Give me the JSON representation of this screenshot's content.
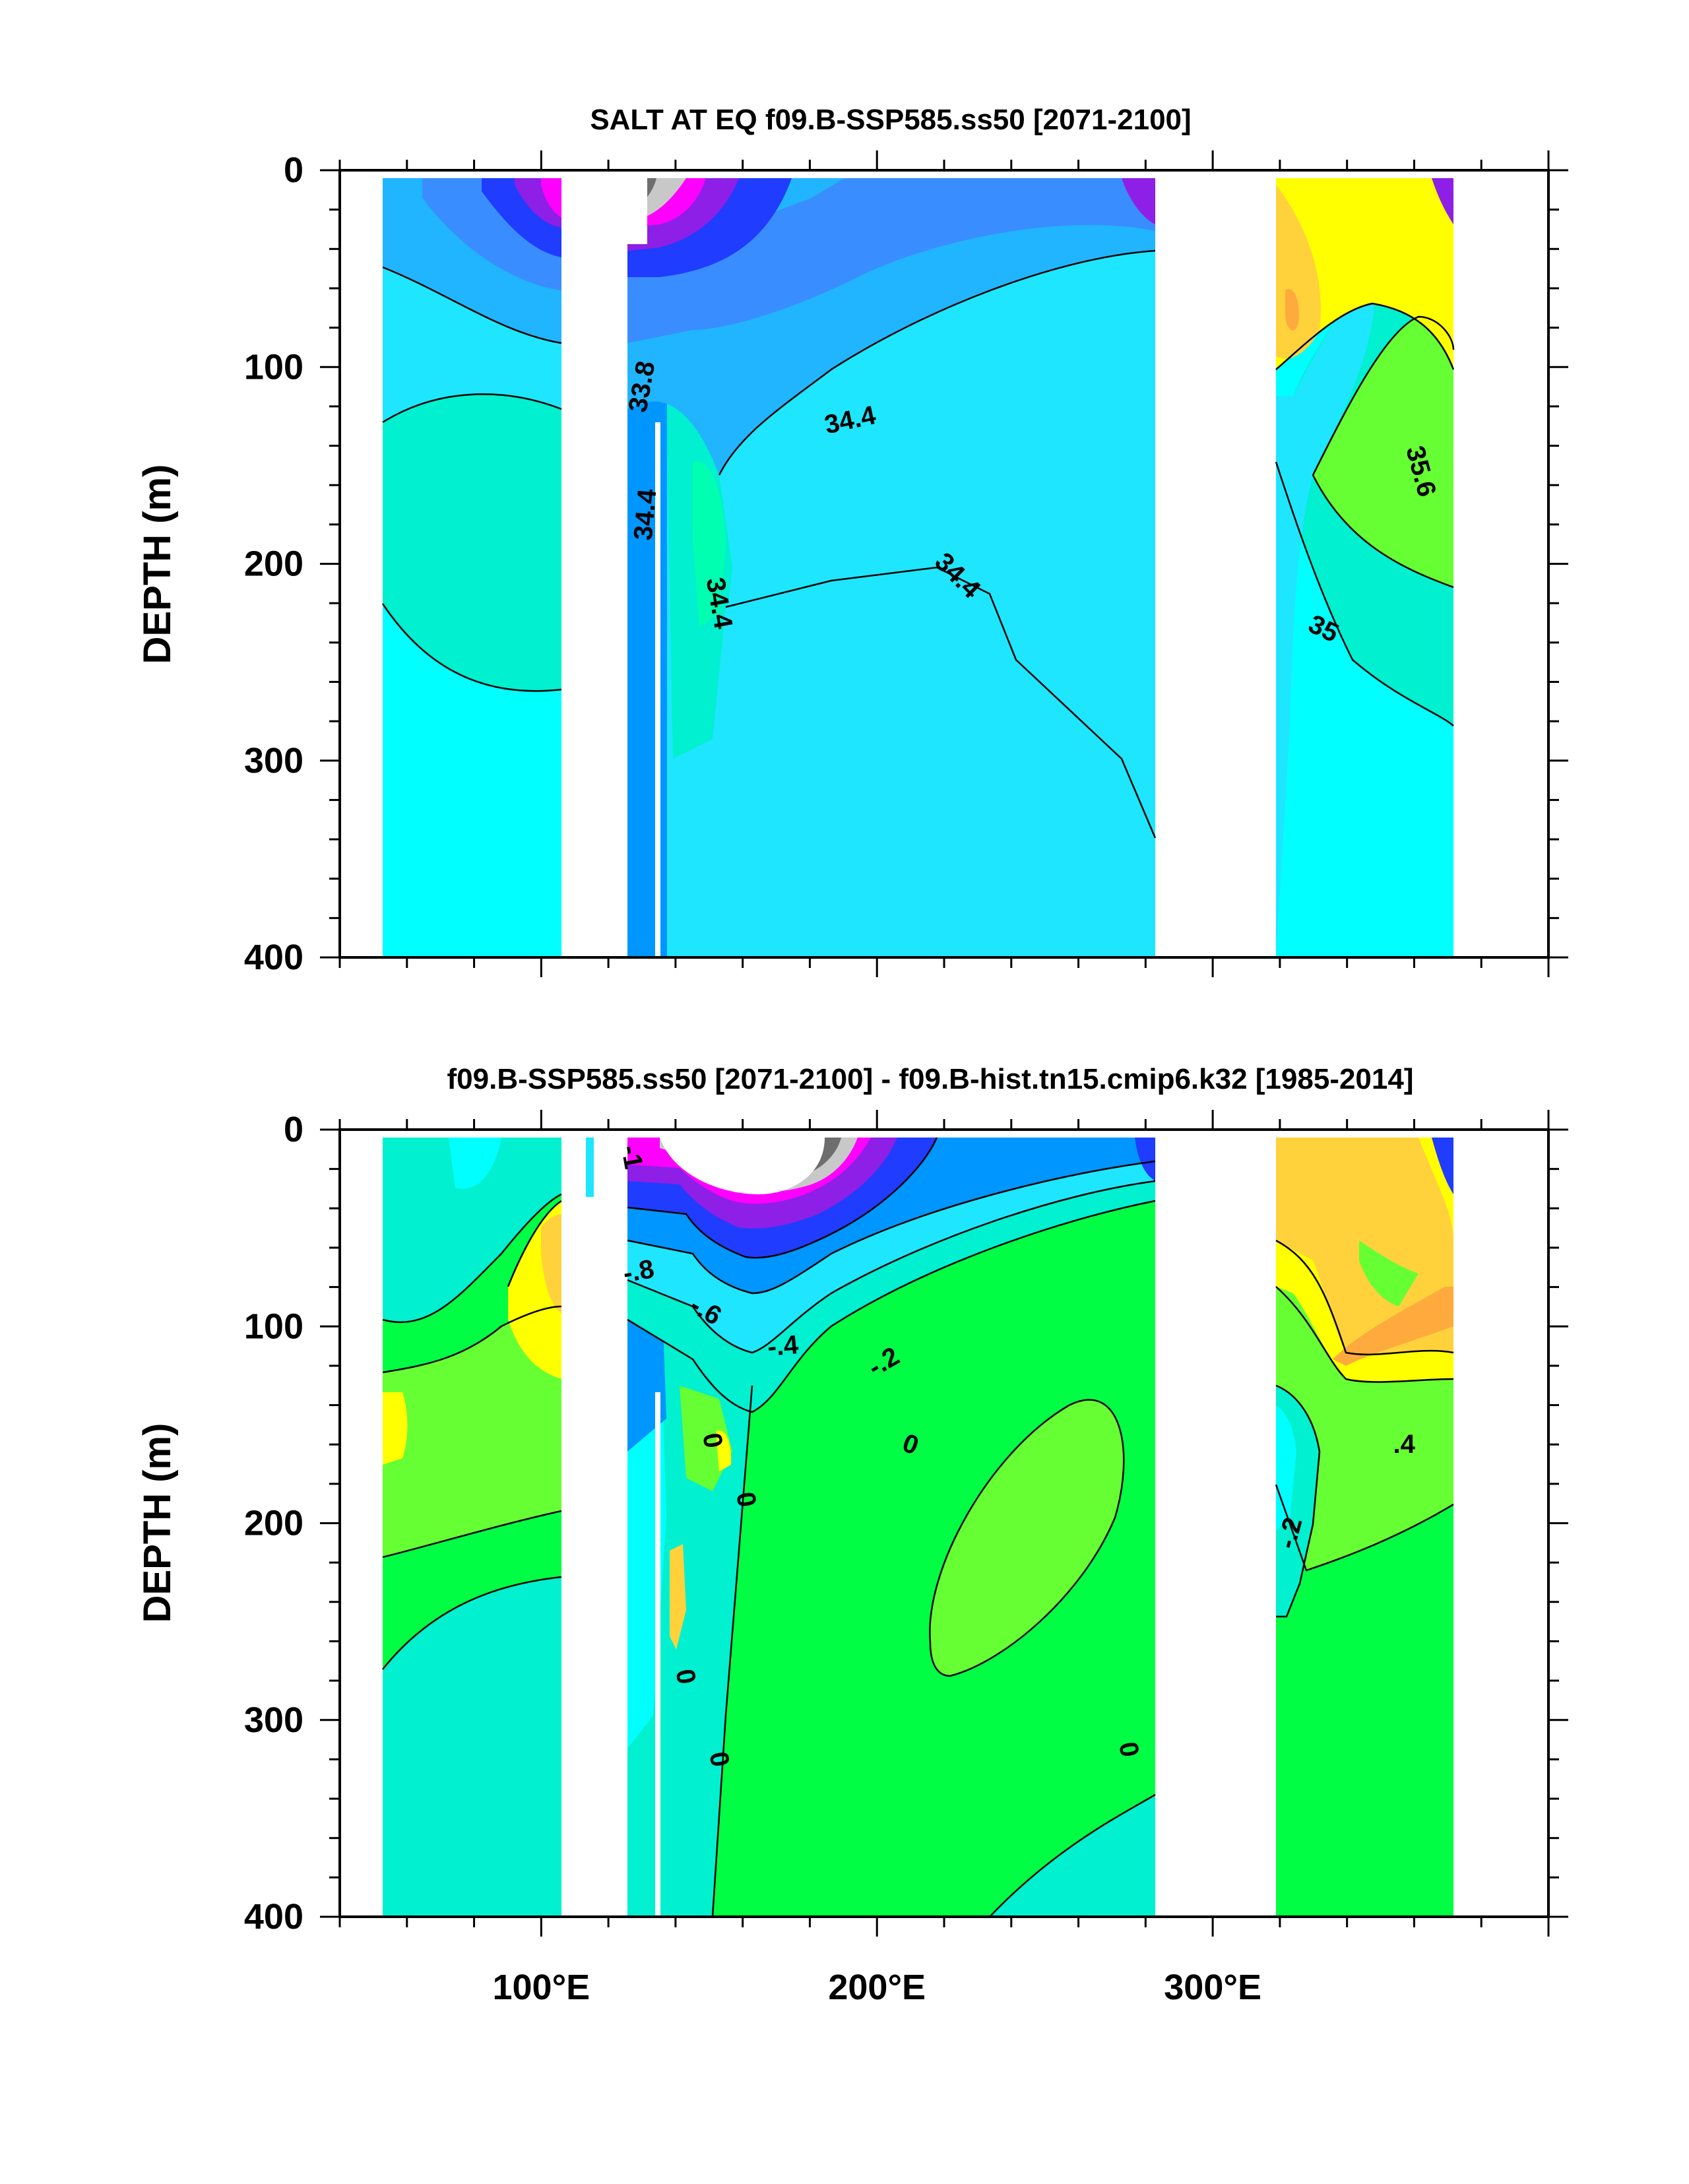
{
  "colors": {
    "land": "#ffffff",
    "upper": {
      "west_a": "#21b5ff",
      "west_b": "#3a8dff",
      "west_c": "#1f3cff",
      "west_d": "#8e1fe6",
      "west_e": "#ff00ff",
      "cyan_light": "#00ffff",
      "cyan_mid": "#1ee6ff",
      "aqua": "#00f0d0",
      "mid_blue": "#0096ff",
      "pink": "#ff2bd0",
      "grey": "#c8c8c8",
      "darkgrey": "#6e6e6e",
      "yellow": "#ffff00",
      "orange": "#ffd23c",
      "orange2": "#ffaa3c",
      "green": "#66ff33",
      "green2": "#33ff66"
    },
    "lower": {
      "aqua": "#00f0d0",
      "cyan": "#00ffff",
      "cyan2": "#1ee6ff",
      "green": "#00ff44",
      "green2": "#66ff33",
      "yellow": "#ffff00",
      "orange": "#ffd23c",
      "orange2": "#ffaa3c",
      "blue": "#1f3cff",
      "blue2": "#0096ff",
      "purple": "#8e1fe6",
      "pink": "#ff00ff",
      "grey": "#c8c8c8",
      "darkgrey": "#6e6e6e"
    }
  },
  "chart_data": [
    {
      "type": "contour",
      "title": "SALT AT EQ f09.B-SSP585.ss50 [2071-2100]",
      "xlabel": "",
      "ylabel": "DEPTH (m)",
      "xlim": [
        40,
        400
      ],
      "ylim": [
        400,
        0
      ],
      "x_ticks": [
        100,
        200,
        300
      ],
      "x_tick_labels": [
        "100°E",
        "200°E",
        "300°E"
      ],
      "y_ticks": [
        0,
        100,
        200,
        300,
        400
      ],
      "y_tick_labels": [
        "0",
        "100",
        "200",
        "300",
        "400"
      ],
      "land_gaps": [
        [
          40,
          52
        ],
        [
          99,
          116
        ],
        [
          278,
          314
        ],
        [
          367,
          400
        ]
      ],
      "contour_labels": [
        {
          "text": "33.8",
          "x": 130,
          "y": 110,
          "rotate": -80
        },
        {
          "text": "34.4",
          "x": 131,
          "y": 175,
          "rotate": -85
        },
        {
          "text": "34.4",
          "x": 192,
          "y": 127,
          "rotate": -12
        },
        {
          "text": "34.4",
          "x": 153,
          "y": 220,
          "rotate": 80
        },
        {
          "text": "34.4",
          "x": 224,
          "y": 206,
          "rotate": 45
        },
        {
          "text": "35.6",
          "x": 362,
          "y": 153,
          "rotate": 75
        },
        {
          "text": "35",
          "x": 333,
          "y": 233,
          "rotate": 25
        }
      ]
    },
    {
      "type": "contour",
      "title": "f09.B-SSP585.ss50 [2071-2100] - f09.B-hist.tn15.cmip6.k32 [1985-2014]",
      "xlabel": "",
      "ylabel": "DEPTH (m)",
      "xlim": [
        40,
        400
      ],
      "ylim": [
        400,
        0
      ],
      "x_ticks": [
        100,
        200,
        300
      ],
      "x_tick_labels": [
        "100°E",
        "200°E",
        "300°E"
      ],
      "y_ticks": [
        0,
        100,
        200,
        300,
        400
      ],
      "y_tick_labels": [
        "0",
        "100",
        "200",
        "300",
        "400"
      ],
      "land_gaps": [
        [
          40,
          52
        ],
        [
          99,
          116
        ],
        [
          278,
          314
        ],
        [
          367,
          400
        ]
      ],
      "contour_labels": [
        {
          "text": "-1",
          "x": 127,
          "y": 14,
          "rotate": 80
        },
        {
          "text": "-.8",
          "x": 129,
          "y": 72,
          "rotate": -10
        },
        {
          "text": "-.6",
          "x": 149,
          "y": 92,
          "rotate": 30
        },
        {
          "text": "-.4",
          "x": 172,
          "y": 110,
          "rotate": -5
        },
        {
          "text": "-.2",
          "x": 202,
          "y": 118,
          "rotate": -30
        },
        {
          "text": "0",
          "x": 151,
          "y": 158,
          "rotate": 80
        },
        {
          "text": "0",
          "x": 161,
          "y": 188,
          "rotate": 80
        },
        {
          "text": "0",
          "x": 210,
          "y": 160,
          "rotate": 20
        },
        {
          "text": "0",
          "x": 143,
          "y": 278,
          "rotate": 80
        },
        {
          "text": "0",
          "x": 153,
          "y": 320,
          "rotate": 80
        },
        {
          "text": "0",
          "x": 275,
          "y": 315,
          "rotate": 80
        },
        {
          "text": ".4",
          "x": 357,
          "y": 160,
          "rotate": 0
        },
        {
          "text": "-.2",
          "x": 323,
          "y": 205,
          "rotate": -75
        }
      ]
    }
  ]
}
